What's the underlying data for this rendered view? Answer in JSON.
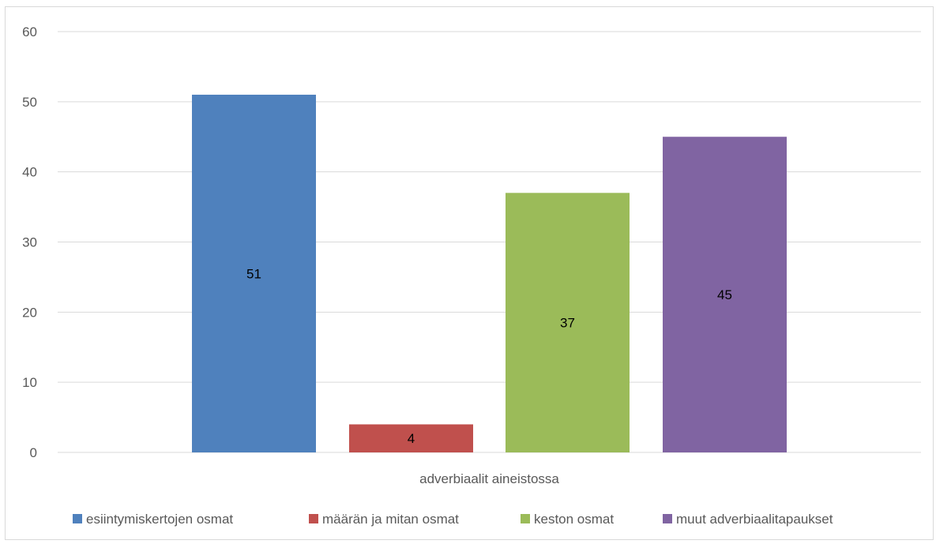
{
  "chart_data": {
    "type": "bar",
    "title": "",
    "xlabel": "",
    "ylabel": "",
    "categories": [
      "adverbiaalit aineistossa"
    ],
    "series": [
      {
        "name": "esiintymiskertojen osmat",
        "values": [
          51
        ],
        "color": "#4f81bd"
      },
      {
        "name": "määrän ja mitan osmat",
        "values": [
          4
        ],
        "color": "#c0504d"
      },
      {
        "name": "keston osmat",
        "values": [
          37
        ],
        "color": "#9bbb59"
      },
      {
        "name": "muut adverbiaalitapaukset",
        "values": [
          45
        ],
        "color": "#8064a2"
      }
    ],
    "ylim": [
      0,
      60
    ],
    "yticks": [
      "0",
      "10",
      "20",
      "30",
      "40",
      "50",
      "60"
    ],
    "grid": true,
    "legend_position": "bottom",
    "data_labels": true
  }
}
